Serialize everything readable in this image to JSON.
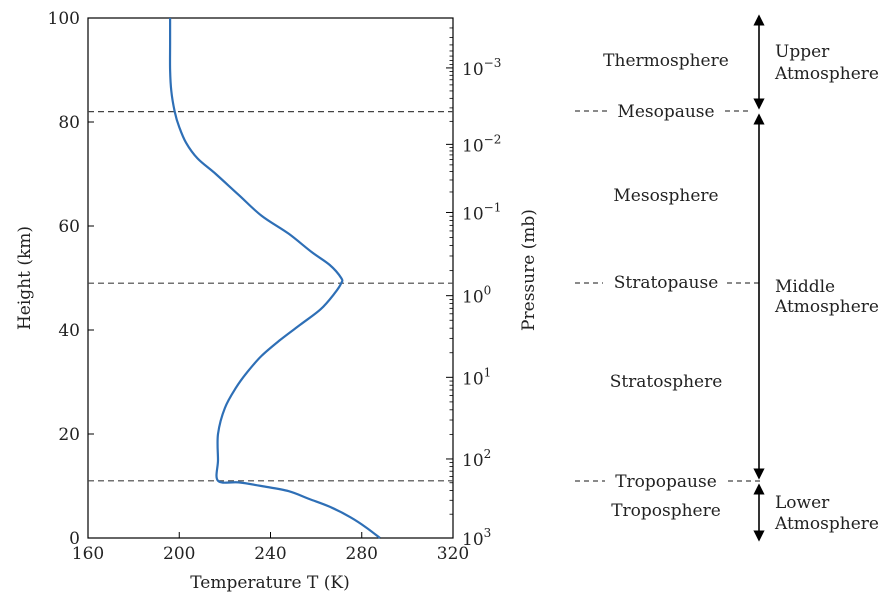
{
  "chart_data": {
    "type": "line",
    "xlabel": "Temperature T (K)",
    "ylabel": "Height (km)",
    "y2label": "Pressure (mb)",
    "xlim": [
      160,
      320
    ],
    "ylim": [
      0,
      100
    ],
    "xticks": [
      "160",
      "200",
      "240",
      "280",
      "320"
    ],
    "yticks": [
      "0",
      "20",
      "40",
      "60",
      "80",
      "100"
    ],
    "y2ticks": [
      {
        "base": "10",
        "exp": "3",
        "height_km": 0
      },
      {
        "base": "10",
        "exp": "2",
        "height_km": 15.2
      },
      {
        "base": "10",
        "exp": "1",
        "height_km": 30.9
      },
      {
        "base": "10",
        "exp": "0",
        "height_km": 46.6
      },
      {
        "base": "10",
        "exp": "−1",
        "height_km": 62.6
      },
      {
        "base": "10",
        "exp": "−2",
        "height_km": 75.7
      },
      {
        "base": "10",
        "exp": "−3",
        "height_km": 90.4
      }
    ],
    "boundaries_km": [
      11,
      49,
      82
    ],
    "series": [
      {
        "color": "#2e6fb6",
        "x": [
          288,
          282,
          275,
          266,
          257,
          248,
          236,
          226,
          217,
          217,
          217,
          220,
          225,
          230,
          236,
          244,
          253,
          262,
          268,
          271,
          271,
          266,
          258,
          248,
          236,
          226,
          216,
          208,
          203,
          200,
          198,
          196.5,
          196,
          196,
          196
        ],
        "y": [
          0,
          2,
          4,
          6,
          7.5,
          9,
          10,
          10.7,
          11,
          15,
          20,
          25,
          29,
          32,
          35,
          38,
          41,
          44,
          47,
          49,
          50,
          52.5,
          55,
          58.5,
          62,
          66,
          70,
          73,
          76,
          79,
          82,
          86,
          90,
          95,
          100
        ]
      }
    ]
  },
  "layers": {
    "thermosphere": "Thermosphere",
    "mesopause": "Mesopause",
    "mesosphere": "Mesosphere",
    "stratopause": "Stratopause",
    "stratosphere": "Stratosphere",
    "tropopause": "Tropopause",
    "troposphere": "Troposphere"
  },
  "regions": {
    "upper_line1": "Upper",
    "upper_line2": "Atmosphere",
    "middle_line1": "Middle",
    "middle_line2": "Atmosphere",
    "lower_line1": "Lower",
    "lower_line2": "Atmosphere"
  }
}
